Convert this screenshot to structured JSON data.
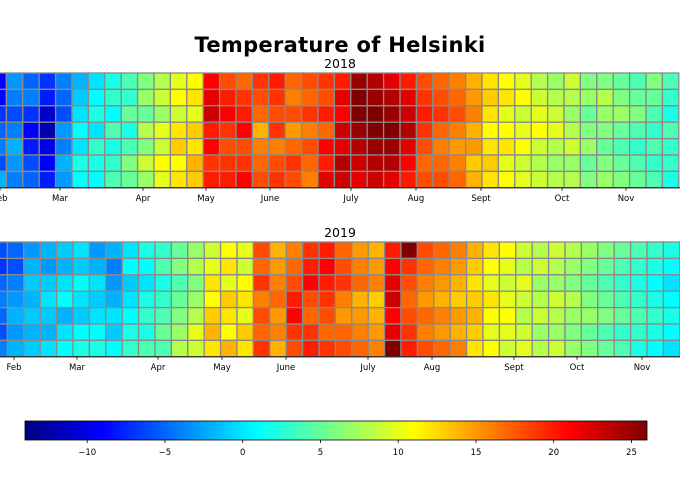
{
  "title": "Temperature of Helsinki",
  "chart_data": [
    {
      "type": "heatmap",
      "title": "2018",
      "rows": 7,
      "month_labels": [
        "Feb",
        "Mar",
        "Apr",
        "May",
        "June",
        "July",
        "Aug",
        "Sept",
        "Oct",
        "Nov"
      ],
      "visible_week_range": [
        1,
        42
      ],
      "weekly_temperatures": [
        [
          -9,
          -9,
          -7,
          -5,
          -4,
          -6,
          -2
        ],
        [
          -3,
          -4,
          -6,
          -4,
          -2,
          -3,
          -4
        ],
        [
          -5,
          -4,
          -7,
          -9,
          -8,
          -6,
          -5
        ],
        [
          -7,
          -8,
          -11,
          -12,
          -10,
          -9,
          -8
        ],
        [
          -4,
          -5,
          -6,
          -3,
          -4,
          -2,
          -3
        ],
        [
          -2,
          -1,
          0,
          1,
          0,
          2,
          1
        ],
        [
          0,
          1,
          2,
          0,
          3,
          2,
          1
        ],
        [
          2,
          3,
          1,
          4,
          2,
          3,
          4
        ],
        [
          4,
          3,
          5,
          2,
          4,
          6,
          5
        ],
        [
          6,
          7,
          5,
          8,
          6,
          9,
          7
        ],
        [
          8,
          9,
          7,
          10,
          9,
          11,
          10
        ],
        [
          10,
          11,
          9,
          12,
          13,
          11,
          12
        ],
        [
          11,
          12,
          10,
          13,
          12,
          14,
          13
        ],
        [
          21,
          22,
          23,
          20,
          21,
          19,
          20
        ],
        [
          18,
          20,
          21,
          19,
          18,
          19,
          20
        ],
        [
          17,
          19,
          20,
          21,
          18,
          19,
          21
        ],
        [
          19,
          18,
          17,
          14,
          16,
          17,
          18
        ],
        [
          20,
          19,
          18,
          19,
          16,
          18,
          19
        ],
        [
          17,
          16,
          18,
          15,
          17,
          19,
          18
        ],
        [
          18,
          17,
          19,
          16,
          18,
          17,
          16
        ],
        [
          19,
          18,
          20,
          17,
          21,
          20,
          22
        ],
        [
          20,
          22,
          21,
          23,
          22,
          24,
          23
        ],
        [
          25,
          26,
          26,
          25,
          24,
          23,
          22
        ],
        [
          24,
          25,
          26,
          26,
          25,
          24,
          23
        ],
        [
          22,
          24,
          25,
          26,
          25,
          24,
          22
        ],
        [
          20,
          22,
          23,
          24,
          22,
          21,
          20
        ],
        [
          18,
          19,
          20,
          19,
          18,
          17,
          18
        ],
        [
          17,
          18,
          19,
          17,
          16,
          17,
          18
        ],
        [
          16,
          17,
          18,
          16,
          15,
          16,
          17
        ],
        [
          14,
          15,
          16,
          14,
          15,
          13,
          14
        ],
        [
          12,
          13,
          12,
          11,
          12,
          13,
          12
        ],
        [
          11,
          12,
          10,
          11,
          12,
          10,
          11
        ],
        [
          10,
          11,
          9,
          10,
          11,
          9,
          10
        ],
        [
          8,
          9,
          10,
          11,
          9,
          8,
          9
        ],
        [
          7,
          8,
          9,
          10,
          8,
          7,
          8
        ],
        [
          9,
          8,
          7,
          8,
          9,
          7,
          8
        ],
        [
          6,
          7,
          5,
          6,
          7,
          5,
          6
        ],
        [
          6,
          8,
          7,
          6,
          5,
          6,
          7
        ],
        [
          5,
          6,
          7,
          5,
          4,
          5,
          6
        ],
        [
          4,
          5,
          6,
          4,
          3,
          4,
          5
        ],
        [
          6,
          5,
          4,
          3,
          4,
          3,
          4
        ],
        [
          4,
          3,
          2,
          4,
          3,
          3,
          2
        ]
      ]
    },
    {
      "type": "heatmap",
      "title": "2019",
      "rows": 7,
      "month_labels": [
        "Feb",
        "Mar",
        "Apr",
        "May",
        "June",
        "July",
        "Aug",
        "Sept",
        "Oct",
        "Nov"
      ],
      "visible_week_range": [
        1,
        42
      ],
      "weekly_temperatures": [
        [
          -6,
          -7,
          -5,
          -4,
          -5,
          -6,
          -4
        ],
        [
          -5,
          -6,
          -4,
          -3,
          -2,
          -3,
          -2
        ],
        [
          -3,
          -2,
          -1,
          -2,
          -1,
          -2,
          -1
        ],
        [
          -2,
          -3,
          -1,
          0,
          -1,
          -2,
          0
        ],
        [
          -1,
          -2,
          0,
          1,
          -2,
          0,
          1
        ],
        [
          0,
          -1,
          1,
          0,
          -1,
          1,
          2
        ],
        [
          -3,
          -2,
          0,
          -1,
          0,
          1,
          2
        ],
        [
          -2,
          -4,
          -3,
          -2,
          0,
          -1,
          1
        ],
        [
          0,
          1,
          -1,
          0,
          1,
          2,
          3
        ],
        [
          2,
          1,
          0,
          2,
          3,
          2,
          4
        ],
        [
          3,
          4,
          2,
          3,
          4,
          5,
          4
        ],
        [
          5,
          6,
          4,
          5,
          6,
          7,
          8
        ],
        [
          7,
          8,
          6,
          7,
          8,
          10,
          9
        ],
        [
          9,
          10,
          12,
          11,
          13,
          14,
          12
        ],
        [
          11,
          12,
          10,
          13,
          12,
          11,
          14
        ],
        [
          10,
          9,
          11,
          12,
          10,
          13,
          12
        ],
        [
          18,
          17,
          19,
          16,
          18,
          17,
          19
        ],
        [
          14,
          15,
          16,
          17,
          15,
          16,
          14
        ],
        [
          16,
          17,
          18,
          20,
          21,
          19,
          18
        ],
        [
          19,
          20,
          21,
          18,
          17,
          19,
          20
        ],
        [
          20,
          21,
          20,
          19,
          18,
          17,
          19
        ],
        [
          17,
          18,
          19,
          16,
          15,
          17,
          18
        ],
        [
          15,
          16,
          17,
          14,
          15,
          16,
          17
        ],
        [
          14,
          15,
          16,
          13,
          14,
          15,
          16
        ],
        [
          20,
          21,
          22,
          23,
          21,
          22,
          26
        ],
        [
          26,
          19,
          18,
          17,
          18,
          19,
          20
        ],
        [
          18,
          17,
          16,
          15,
          17,
          16,
          18
        ],
        [
          17,
          16,
          15,
          14,
          16,
          15,
          17
        ],
        [
          16,
          15,
          14,
          13,
          15,
          14,
          16
        ],
        [
          14,
          13,
          12,
          13,
          14,
          13,
          12
        ],
        [
          12,
          11,
          10,
          12,
          11,
          10,
          11
        ],
        [
          11,
          10,
          9,
          10,
          11,
          10,
          9
        ],
        [
          9,
          8,
          10,
          9,
          8,
          9,
          10
        ],
        [
          8,
          9,
          7,
          8,
          9,
          7,
          8
        ],
        [
          9,
          8,
          7,
          9,
          8,
          7,
          9
        ],
        [
          8,
          7,
          6,
          8,
          7,
          6,
          7
        ],
        [
          7,
          6,
          5,
          6,
          7,
          5,
          6
        ],
        [
          6,
          5,
          4,
          5,
          6,
          4,
          5
        ],
        [
          5,
          4,
          3,
          4,
          5,
          3,
          4
        ],
        [
          4,
          3,
          2,
          3,
          4,
          3,
          2
        ],
        [
          3,
          2,
          1,
          2,
          3,
          2,
          1
        ],
        [
          2,
          1,
          0,
          1,
          2,
          1,
          0
        ]
      ]
    }
  ],
  "colorbar": {
    "ticks": [
      -10,
      -5,
      0,
      5,
      10,
      15,
      20,
      25
    ],
    "range": [
      -14,
      26
    ],
    "colormap": "jet"
  }
}
